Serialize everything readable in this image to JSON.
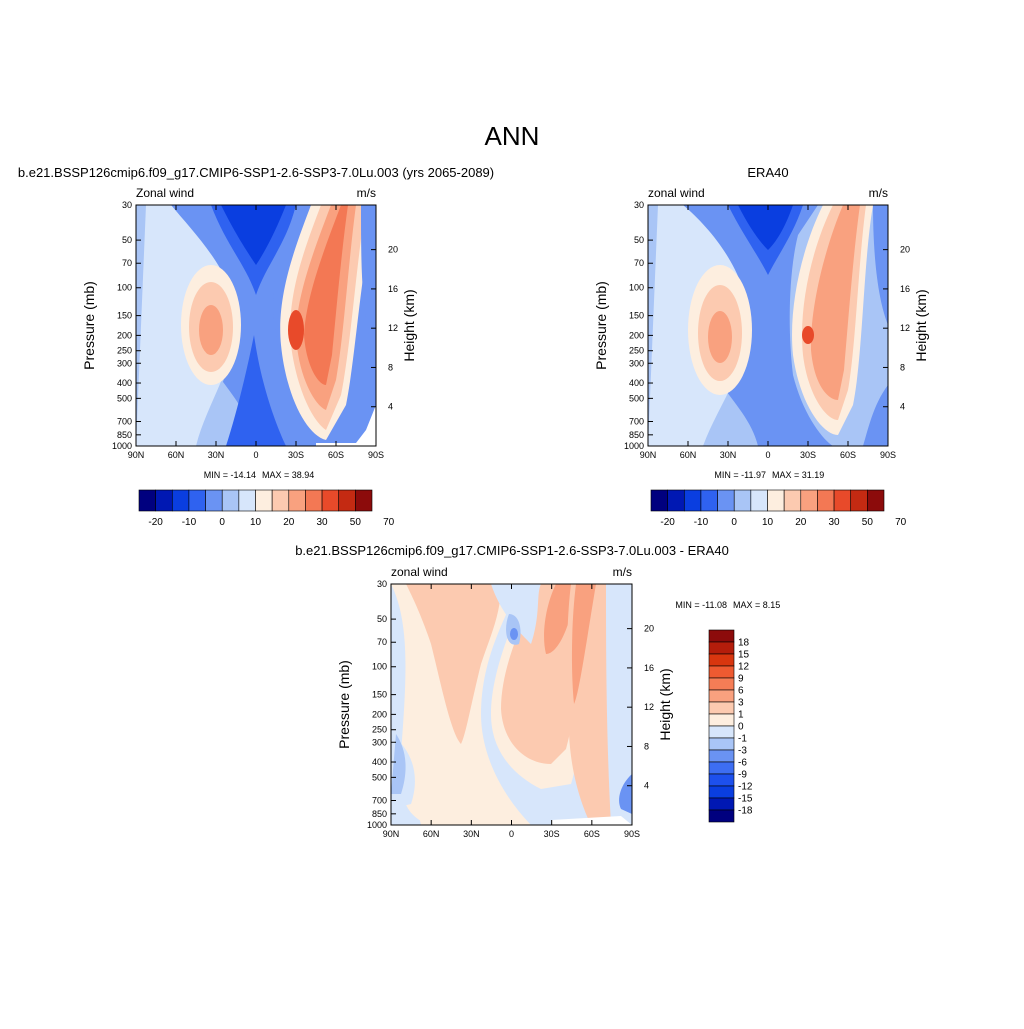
{
  "page": {
    "title": "ANN"
  },
  "colors": {
    "scale_24": [
      "#00007f",
      "#0018b3",
      "#0a3ee0",
      "#2f62f0",
      "#6a93f3",
      "#a9c5f6",
      "#d7e6fb",
      "#fdeedf",
      "#fccab0",
      "#f9a17f",
      "#f37854",
      "#e84a2a",
      "#c42a12",
      "#8c0b0b"
    ],
    "scale_diff": [
      "#00007f",
      "#0018b3",
      "#0a3ee0",
      "#1d50ed",
      "#3d6ef2",
      "#6a93f3",
      "#a9c5f6",
      "#d7e6fb",
      "#fdeedf",
      "#fccab0",
      "#f9a17f",
      "#f57d56",
      "#ee5a31",
      "#d8360f",
      "#b41d0b",
      "#8c0b0b"
    ]
  },
  "chart_data": [
    {
      "type": "heatmap",
      "title": "b.e21.BSSP126cmip6.f09_g17.CMIP6-SSP1-2.6-SSP3-7.0Lu.003 (yrs 2065-2089)",
      "variable": "Zonal wind",
      "units": "m/s",
      "ylabel": "Pressure (mb)",
      "ylabel_right": "Height (km)",
      "x_ticks": [
        "90N",
        "60N",
        "30N",
        "0",
        "30S",
        "60S",
        "90S"
      ],
      "y_ticks": [
        "30",
        "50",
        "70",
        "100",
        "150",
        "200",
        "250",
        "300",
        "400",
        "500",
        "700",
        "850",
        "1000"
      ],
      "y_right_ticks": [
        "20",
        "16",
        "12",
        "8",
        "4"
      ],
      "colorbar_ticks": [
        "-20",
        "-10",
        "0",
        "10",
        "20",
        "30",
        "50",
        "70"
      ],
      "min_label": "MIN = -14.14",
      "max_label": "MAX = 38.94",
      "min": -14.14,
      "max": 38.94
    },
    {
      "type": "heatmap",
      "title": "ERA40",
      "variable": "zonal wind",
      "units": "m/s",
      "ylabel": "Pressure (mb)",
      "ylabel_right": "Height (km)",
      "x_ticks": [
        "90N",
        "60N",
        "30N",
        "0",
        "30S",
        "60S",
        "90S"
      ],
      "y_ticks": [
        "30",
        "50",
        "70",
        "100",
        "150",
        "200",
        "250",
        "300",
        "400",
        "500",
        "700",
        "850",
        "1000"
      ],
      "y_right_ticks": [
        "20",
        "16",
        "12",
        "8",
        "4"
      ],
      "colorbar_ticks": [
        "-20",
        "-10",
        "0",
        "10",
        "20",
        "30",
        "50",
        "70"
      ],
      "min_label": "MIN = -11.97",
      "max_label": "MAX = 31.19",
      "min": -11.97,
      "max": 31.19
    },
    {
      "type": "heatmap",
      "title": "b.e21.BSSP126cmip6.f09_g17.CMIP6-SSP1-2.6-SSP3-7.0Lu.003 - ERA40",
      "variable": "zonal wind",
      "units": "m/s",
      "ylabel": "Pressure (mb)",
      "ylabel_right": "Height (km)",
      "x_ticks": [
        "90N",
        "60N",
        "30N",
        "0",
        "30S",
        "60S",
        "90S"
      ],
      "y_ticks": [
        "30",
        "50",
        "70",
        "100",
        "150",
        "200",
        "250",
        "300",
        "400",
        "500",
        "700",
        "850",
        "1000"
      ],
      "y_right_ticks": [
        "20",
        "16",
        "12",
        "8",
        "4"
      ],
      "colorbar_ticks": [
        "18",
        "15",
        "12",
        "9",
        "6",
        "3",
        "1",
        "0",
        "-1",
        "-3",
        "-6",
        "-9",
        "-12",
        "-15",
        "-18"
      ],
      "min_label": "MIN = -11.08",
      "max_label": "MAX =   8.15",
      "min": -11.08,
      "max": 8.15
    }
  ]
}
